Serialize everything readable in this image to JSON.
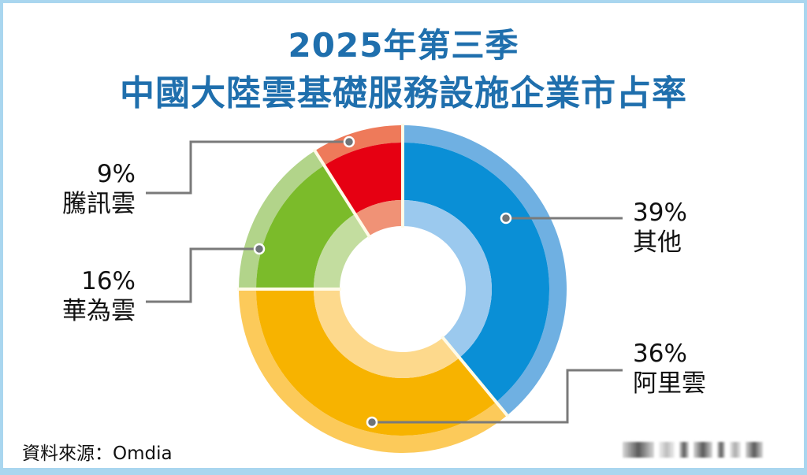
{
  "title": {
    "line1": "2025年第三季",
    "line2": "中國大陸雲基礎服務設施企業市占率"
  },
  "labels": {
    "others": {
      "pct": "39%",
      "name": "其他"
    },
    "alibaba": {
      "pct": "36%",
      "name": "阿里雲"
    },
    "huawei": {
      "pct": "16%",
      "name": "華為雲"
    },
    "tencent": {
      "pct": "9%",
      "name": "騰訊雲"
    }
  },
  "source": "資料來源：Omdia",
  "watermark": "blurred watermark",
  "colors": {
    "title": "#1f6fad",
    "others_dark": "#0a8fd6",
    "others_light": "#6fb0e2",
    "others_inner": "#9bc9ee",
    "alibaba_dark": "#f7b300",
    "alibaba_light": "#fcca5a",
    "alibaba_inner": "#fdd98c",
    "huawei_dark": "#7bbb2a",
    "huawei_light": "#b2d48a",
    "huawei_inner": "#c3dd9f",
    "tencent_dark": "#e60012",
    "tencent_light": "#ee7a5a",
    "tencent_inner": "#f09276",
    "frame": "#a9d6ef"
  },
  "chart_data": {
    "type": "pie",
    "subtype": "donut",
    "title": "2025年第三季 中國大陸雲基礎服務設施企業市占率",
    "categories": [
      "其他",
      "阿里雲",
      "華為雲",
      "騰訊雲"
    ],
    "values": [
      39,
      36,
      16,
      9
    ],
    "unit": "%",
    "start_angle": "12 o'clock, clockwise",
    "source": "Omdia",
    "legend": "none (callout labels)"
  }
}
